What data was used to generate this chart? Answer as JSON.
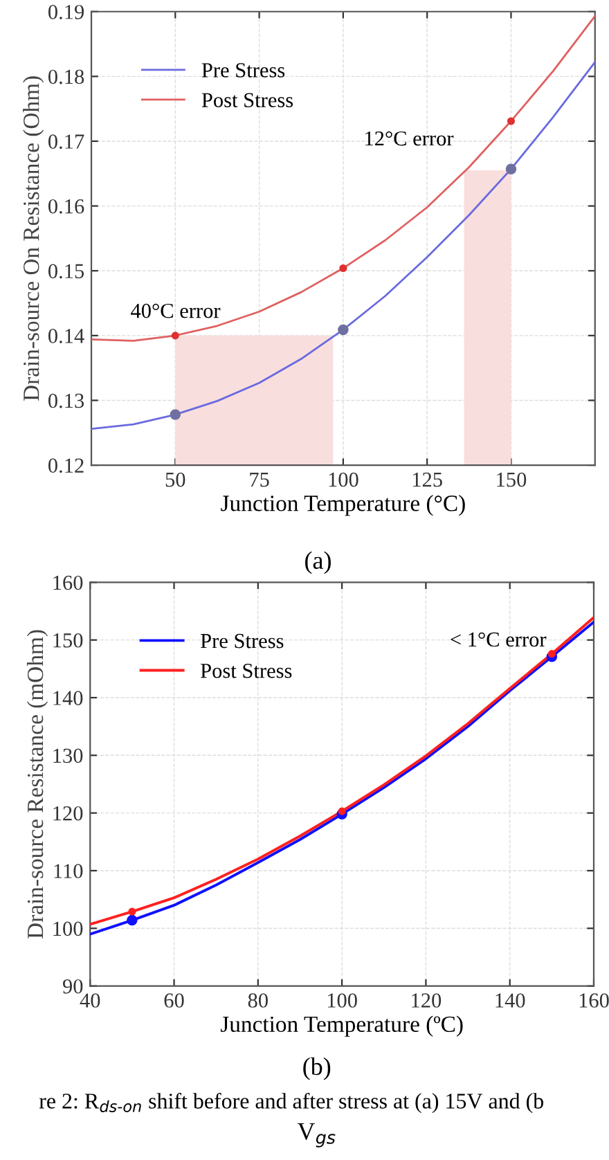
{
  "chart_data": [
    {
      "type": "line",
      "xlabel": "Junction Temperature (°C)",
      "ylabel": "Drain-source On Resistance (Ohm)",
      "xlim": [
        25,
        175
      ],
      "xticks": [
        50,
        75,
        100,
        125,
        150
      ],
      "ylim": [
        0.12,
        0.19
      ],
      "yticks": [
        0.12,
        0.13,
        0.14,
        0.15,
        0.16,
        0.17,
        0.18,
        0.19
      ],
      "grid": true,
      "legend": "top left",
      "series": [
        {
          "name": "Pre Stress",
          "color": "#6a6ae0",
          "x": [
            25,
            37.5,
            50,
            62.5,
            75,
            87.5,
            100,
            112.5,
            125,
            137.5,
            150,
            162.5,
            175
          ],
          "values": [
            0.1256,
            0.1263,
            0.1278,
            0.1299,
            0.1327,
            0.1364,
            0.1409,
            0.1461,
            0.1521,
            0.1586,
            0.1657,
            0.1737,
            0.1822
          ]
        },
        {
          "name": "Post Stress",
          "color": "#e06060",
          "x": [
            25,
            37.5,
            50,
            62.5,
            75,
            87.5,
            100,
            112.5,
            125,
            137.5,
            150,
            162.5,
            175
          ],
          "values": [
            0.1394,
            0.1392,
            0.14,
            0.1415,
            0.1437,
            0.1467,
            0.1504,
            0.1547,
            0.1598,
            0.166,
            0.1731,
            0.1808,
            0.1893
          ]
        },
        {
          "type": "scatter",
          "color": "#7070a0",
          "x": [
            50,
            100,
            150
          ],
          "values": [
            0.1278,
            0.1409,
            0.1657
          ],
          "marker": "circle"
        },
        {
          "type": "scatter",
          "color": "#e03030",
          "x": [
            50,
            100,
            150
          ],
          "values": [
            0.14,
            0.1504,
            0.1731
          ],
          "marker": "circle"
        },
        {
          "type": "area",
          "color": "#f9dede",
          "x": [
            50,
            97
          ],
          "values": [
            0.14,
            0.14
          ]
        },
        {
          "type": "area",
          "color": "#f9dede",
          "x": [
            136,
            150
          ],
          "values": [
            0.1655,
            0.1655
          ]
        }
      ],
      "annotations": [
        "40°C error",
        "12°C error",
        "(a)"
      ]
    },
    {
      "type": "line",
      "xlabel": "Junction Temperature (ºC)",
      "ylabel": "Drain-source Resistance (mOhm)",
      "xlim": [
        40,
        160
      ],
      "xticks": [
        40,
        60,
        80,
        100,
        120,
        140,
        160
      ],
      "ylim": [
        90,
        160
      ],
      "yticks": [
        90,
        100,
        110,
        120,
        130,
        140,
        150,
        160
      ],
      "grid": true,
      "legend": "top left",
      "series": [
        {
          "name": "Pre Stress",
          "color": "#1010ff",
          "x": [
            40,
            50,
            60,
            70,
            80,
            90,
            100,
            110,
            120,
            130,
            140,
            150,
            160
          ],
          "values": [
            99.0,
            101.4,
            104.0,
            107.5,
            111.4,
            115.4,
            119.8,
            124.4,
            129.4,
            135.0,
            141.2,
            147.1,
            153.1
          ]
        },
        {
          "name": "Post Stress",
          "color": "#ff2020",
          "x": [
            40,
            50,
            60,
            70,
            80,
            90,
            100,
            110,
            120,
            130,
            140,
            150,
            160
          ],
          "values": [
            100.7,
            102.9,
            105.3,
            108.5,
            112.0,
            116.0,
            120.3,
            124.9,
            129.9,
            135.5,
            141.6,
            147.6,
            153.9
          ]
        },
        {
          "type": "scatter",
          "color": "#1010ff",
          "x": [
            50,
            100,
            150
          ],
          "values": [
            101.4,
            119.8,
            147.1
          ],
          "marker": "circle"
        },
        {
          "type": "scatter",
          "color": "#ff2020",
          "x": [
            50,
            100,
            150
          ],
          "values": [
            102.9,
            120.3,
            147.6
          ],
          "marker": "circle"
        }
      ],
      "annotations": [
        "< 1°C error",
        "(b)",
        "re 2: R$_{ds‐on}$ shift before and after stress at (a) 15V and (b",
        "V$_{gs}$"
      ]
    }
  ]
}
